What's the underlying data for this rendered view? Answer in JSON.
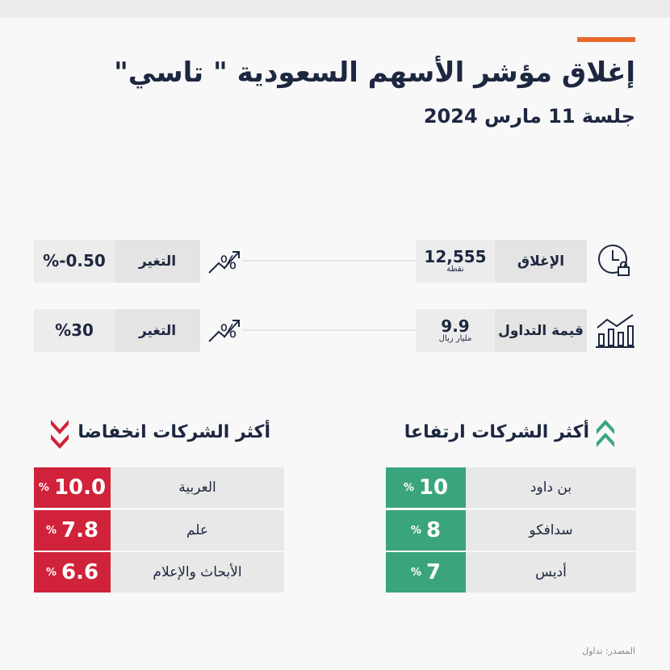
{
  "header": {
    "title": "إغلاق مؤشر الأسهم السعودية \" تاسي\"",
    "subtitle": "جلسة 11 مارس 2024"
  },
  "stats": [
    {
      "label": "الإغلاق",
      "value": "12,555",
      "unit": "نقطة",
      "change_label": "التغير",
      "change": "%-0.50"
    },
    {
      "label": "قيمة التداول",
      "value": "9.9",
      "unit": "مليار ريال",
      "change_label": "التغير",
      "change": "%30"
    }
  ],
  "gainers": {
    "title": "أكثر الشركات ارتفاعا",
    "rows": [
      {
        "name": "بن داود",
        "value": "10",
        "unit": "%"
      },
      {
        "name": "سدافكو",
        "value": "8",
        "unit": "%"
      },
      {
        "name": "أديس",
        "value": "7",
        "unit": "%"
      }
    ]
  },
  "losers": {
    "title": "أكثر الشركات انخفاضا",
    "rows": [
      {
        "name": "العربية",
        "value": "10.0",
        "unit": "%"
      },
      {
        "name": "علم",
        "value": "7.8",
        "unit": "%"
      },
      {
        "name": "الأبحاث والإعلام",
        "value": "6.6",
        "unit": "%"
      }
    ]
  },
  "source": "المصدر: تداول"
}
